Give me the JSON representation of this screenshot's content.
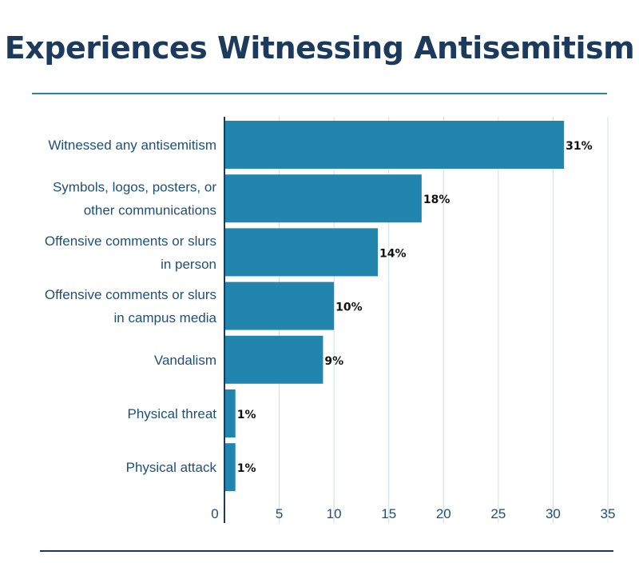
{
  "title": "Experiences Witnessing Antisemitism",
  "chart_data": {
    "type": "bar",
    "orientation": "horizontal",
    "categories": [
      [
        "Witnessed any antisemitism"
      ],
      [
        "Symbols, logos, posters, or",
        "other communications"
      ],
      [
        "Offensive comments or slurs",
        "in person"
      ],
      [
        "Offensive comments or slurs",
        "in campus media"
      ],
      [
        "Vandalism"
      ],
      [
        "Physical threat"
      ],
      [
        "Physical attack"
      ]
    ],
    "values": [
      31,
      18,
      14,
      10,
      9,
      1,
      1
    ],
    "data_labels": [
      "31%",
      "18%",
      "14%",
      "10%",
      "9%",
      "1%",
      "1%"
    ],
    "xlim": [
      0,
      35
    ],
    "xticks": [
      0,
      5,
      10,
      15,
      20,
      25,
      30,
      35
    ],
    "grid": true,
    "bar_color": "#2285ae",
    "axis_color": "#1b3a5c",
    "grid_color": "#d0dde6"
  }
}
